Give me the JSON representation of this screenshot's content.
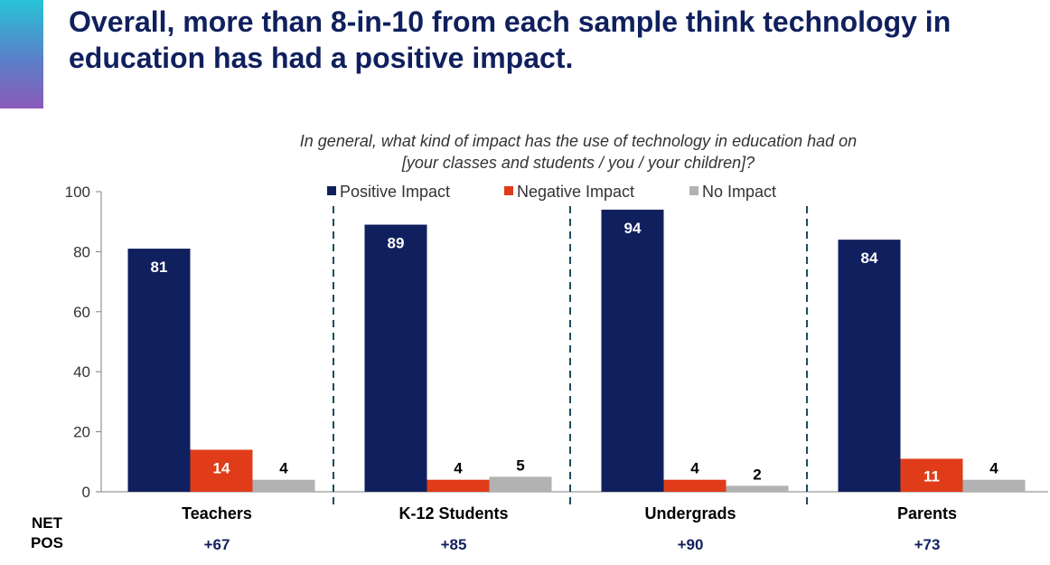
{
  "header": {
    "title": "Overall, more than 8-in-10 from each sample think technology in education has had a positive impact."
  },
  "question": {
    "line1": "In general, what kind of impact has the use of technology in education had on",
    "line2": "[your classes and students / you / your children]?"
  },
  "net_pos": {
    "label_line1": "NET",
    "label_line2": "POS"
  },
  "chart_data": {
    "type": "bar",
    "categories": [
      "Teachers",
      "K-12 Students",
      "Undergrads",
      "Parents"
    ],
    "series": [
      {
        "name": "Positive Impact",
        "values": [
          81,
          89,
          94,
          84
        ],
        "color": "#10205e",
        "label_color": "#ffffff"
      },
      {
        "name": "Negative Impact",
        "values": [
          14,
          4,
          4,
          11
        ],
        "color": "#e03c1a",
        "label_color": "#ffffff"
      },
      {
        "name": "No Impact",
        "values": [
          4,
          5,
          2,
          4
        ],
        "color": "#b2b2b2",
        "label_color": "#000000"
      }
    ],
    "net_pos_values": [
      "+67",
      "+85",
      "+90",
      "+73"
    ],
    "ylim": [
      0,
      100
    ],
    "yticks": [
      0,
      20,
      40,
      60,
      80,
      100
    ],
    "grid": false,
    "legend_position": "top",
    "group_separators": "dashed"
  }
}
